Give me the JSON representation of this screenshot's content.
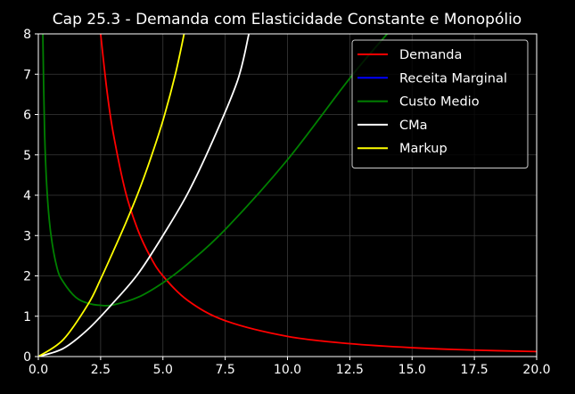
{
  "chart_data": {
    "type": "line",
    "title": "Cap 25.3 - Demanda com Elasticidade Constante e Monopólio",
    "xlabel": "",
    "ylabel": "",
    "xlim": [
      0,
      20
    ],
    "ylim": [
      0,
      8
    ],
    "x_ticks": [
      "0.0",
      "2.5",
      "5.0",
      "7.5",
      "10.0",
      "12.5",
      "15.0",
      "17.5",
      "20.0"
    ],
    "y_ticks": [
      "0",
      "1",
      "2",
      "3",
      "4",
      "5",
      "6",
      "7",
      "8"
    ],
    "grid": true,
    "legend_position": "top-right",
    "background": "#000000",
    "series": [
      {
        "name": "Demanda",
        "color": "#ff0000",
        "x": [
          2.5,
          2.75,
          3.0,
          3.5,
          4.0,
          4.5,
          5.0,
          6.0,
          7.5,
          10.0,
          12.5,
          15.0,
          17.5,
          20.0
        ],
        "y": [
          8.0,
          6.61,
          5.56,
          4.08,
          3.13,
          2.47,
          2.0,
          1.39,
          0.89,
          0.5,
          0.32,
          0.22,
          0.16,
          0.125
        ]
      },
      {
        "name": "Receita Marginal",
        "color": "#0000ff",
        "x": [],
        "y": []
      },
      {
        "name": "Custo Medio",
        "color": "#008000",
        "x": [
          0.18,
          0.25,
          0.35,
          0.5,
          0.75,
          1.0,
          1.5,
          2.0,
          2.5,
          3.0,
          4.0,
          5.0,
          6.0,
          7.5,
          10.0,
          12.5,
          14.0
        ],
        "y": [
          8.0,
          5.6,
          4.1,
          3.05,
          2.2,
          1.85,
          1.47,
          1.32,
          1.27,
          1.28,
          1.47,
          1.83,
          2.3,
          3.15,
          4.88,
          6.9,
          8.0
        ],
        "smooth": true
      },
      {
        "name": "CMa",
        "color": "#ffffff",
        "x": [
          0.0,
          1.0,
          2.0,
          3.0,
          4.0,
          5.0,
          6.0,
          7.0,
          8.0,
          8.45
        ],
        "y": [
          0.0,
          0.2,
          0.68,
          1.33,
          2.05,
          3.0,
          4.05,
          5.35,
          6.85,
          8.0
        ]
      },
      {
        "name": "Markup",
        "color": "#ffff00",
        "x": [
          0.0,
          1.0,
          2.0,
          2.5,
          3.0,
          3.5,
          4.0,
          4.5,
          5.0,
          5.5,
          5.85
        ],
        "y": [
          0.0,
          0.42,
          1.3,
          1.92,
          2.6,
          3.3,
          4.05,
          4.9,
          5.85,
          7.0,
          8.0
        ]
      }
    ]
  }
}
